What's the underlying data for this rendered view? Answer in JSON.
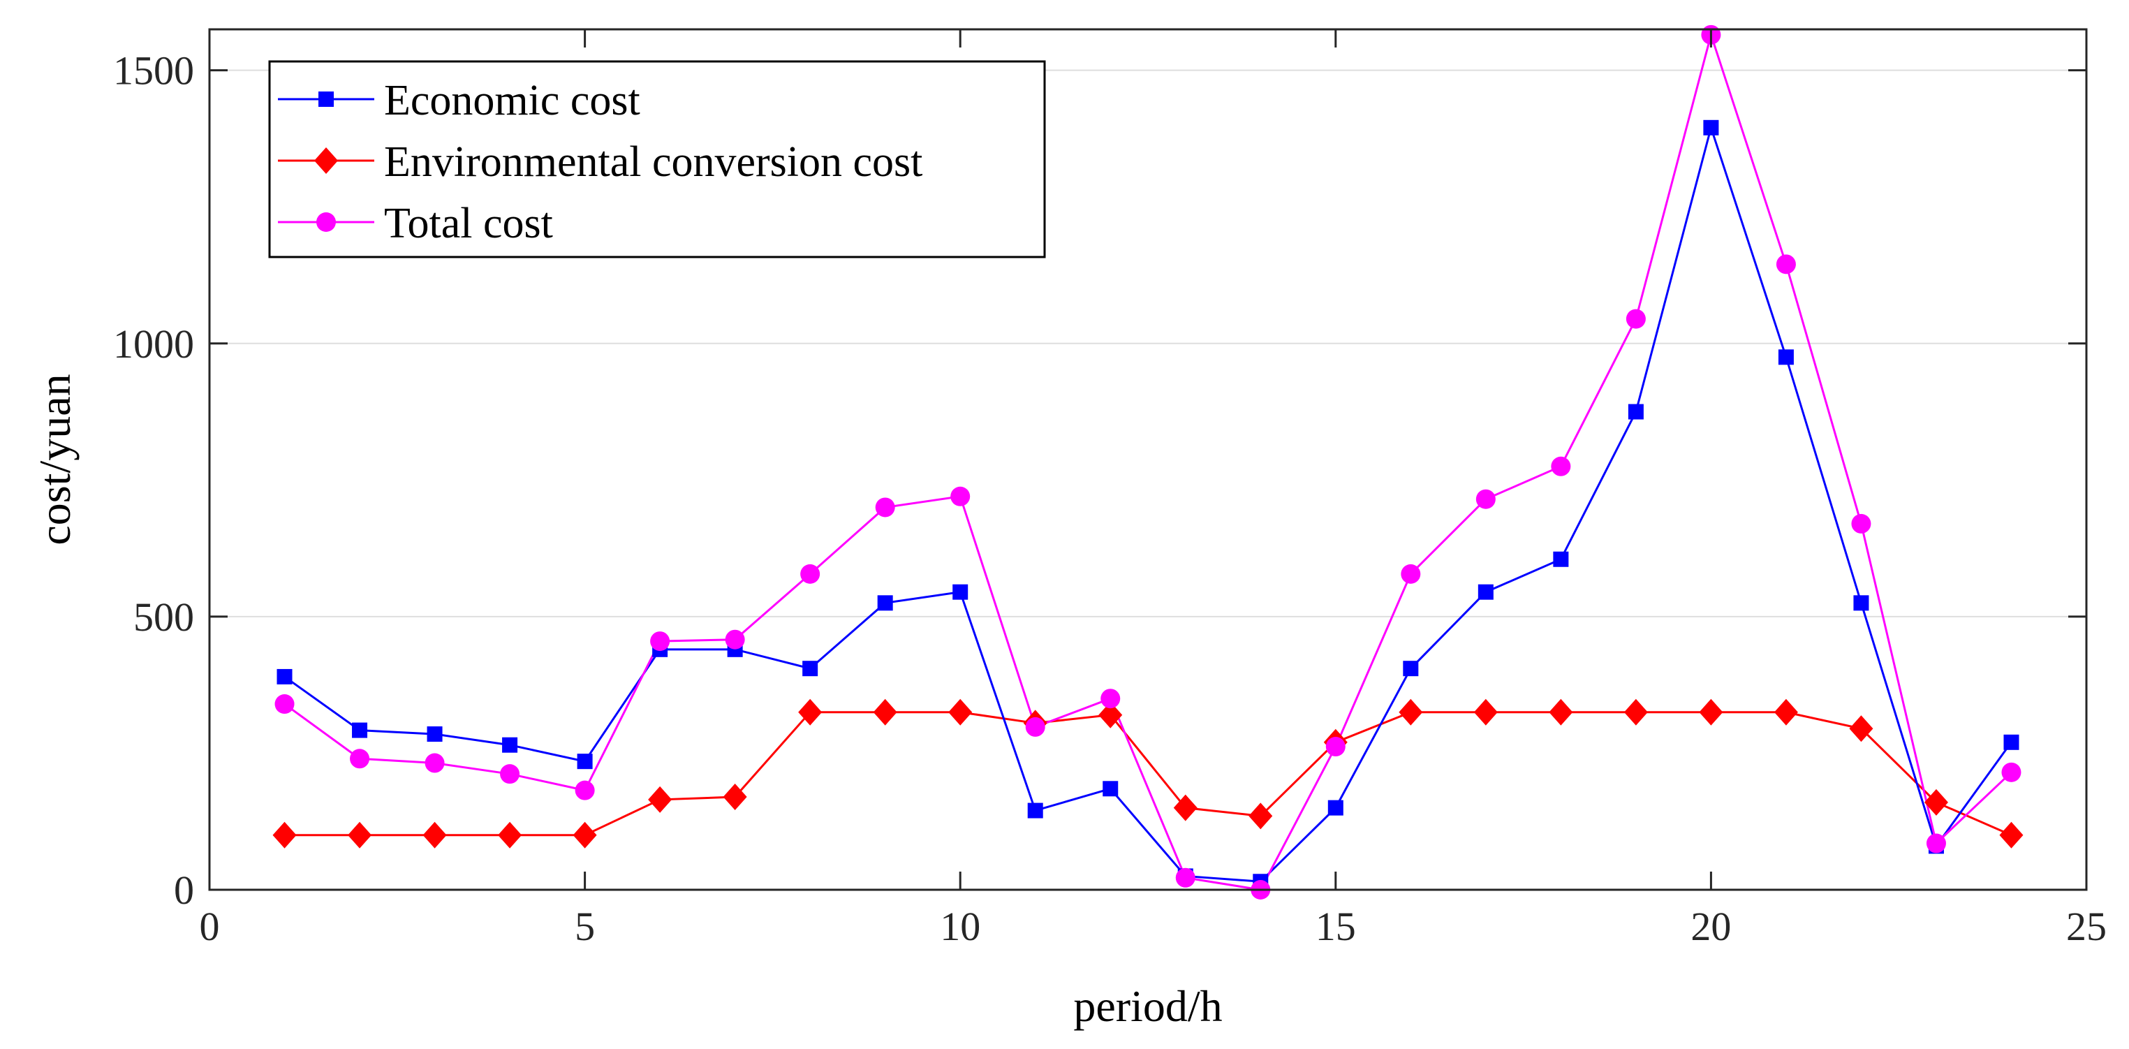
{
  "chart_data": {
    "type": "line",
    "xlabel": "period/h",
    "ylabel": "cost/yuan",
    "xlim": [
      0,
      25
    ],
    "ylim": [
      0,
      1500
    ],
    "xticks": [
      "0",
      "5",
      "10",
      "15",
      "20",
      "25"
    ],
    "yticks": [
      "0",
      "500",
      "1000",
      "1500"
    ],
    "grid": "horizontal",
    "legend_position": "top-left",
    "x": [
      1,
      2,
      3,
      4,
      5,
      6,
      7,
      8,
      9,
      10,
      11,
      12,
      13,
      14,
      15,
      16,
      17,
      18,
      19,
      20,
      21,
      22,
      23,
      24
    ],
    "series": [
      {
        "name": "Economic cost",
        "color": "#0000ff",
        "marker": "square",
        "values": [
          390,
          292,
          285,
          265,
          235,
          440,
          440,
          405,
          525,
          545,
          145,
          185,
          25,
          15,
          150,
          405,
          545,
          605,
          875,
          1395,
          975,
          525,
          80,
          270
        ]
      },
      {
        "name": "Environmental conversion cost",
        "color": "#ff0000",
        "marker": "diamond",
        "values": [
          100,
          100,
          100,
          100,
          100,
          165,
          170,
          325,
          325,
          325,
          305,
          320,
          150,
          135,
          270,
          325,
          325,
          325,
          325,
          325,
          325,
          295,
          160,
          100
        ]
      },
      {
        "name": "Total cost",
        "color": "#ff00ff",
        "marker": "circle",
        "values": [
          340,
          240,
          232,
          212,
          182,
          455,
          458,
          578,
          700,
          720,
          298,
          350,
          22,
          0,
          262,
          578,
          715,
          775,
          1045,
          1565,
          1145,
          670,
          85,
          215
        ]
      }
    ]
  }
}
